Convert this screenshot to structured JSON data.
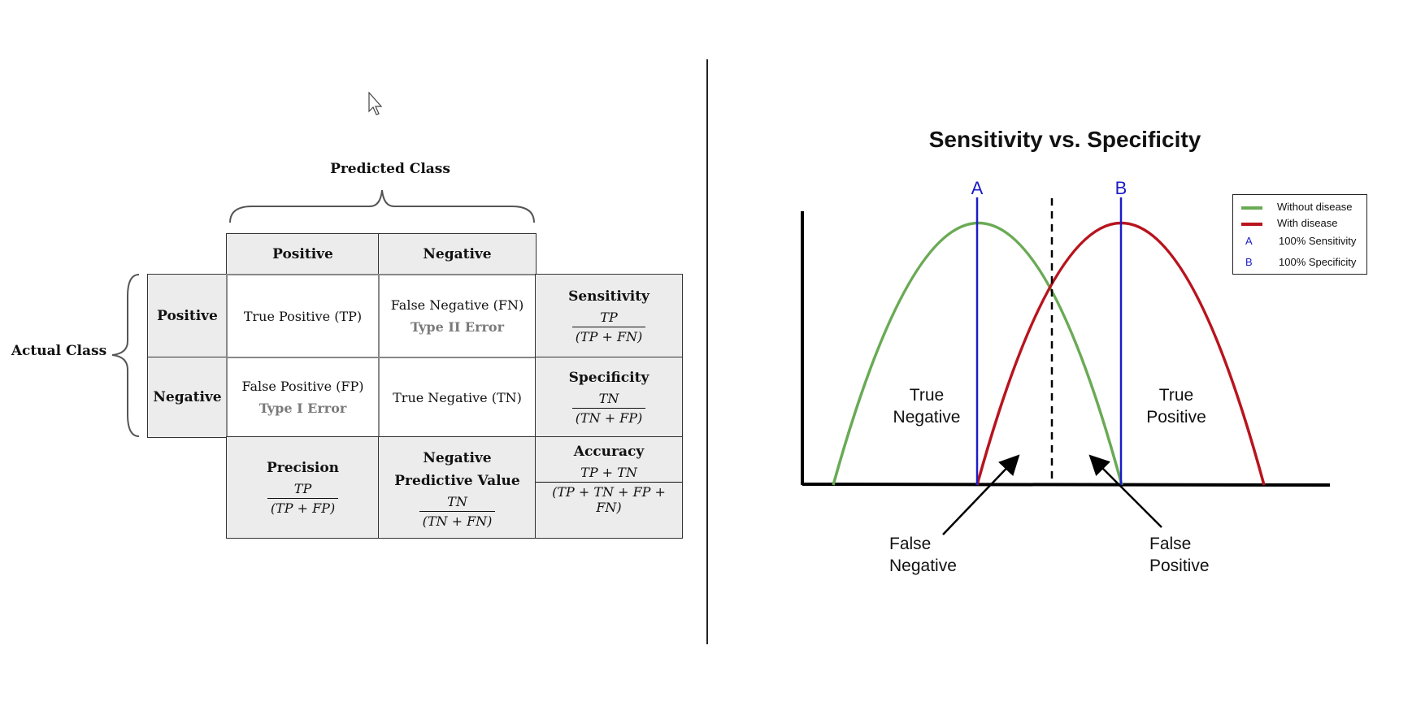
{
  "confusion_matrix": {
    "predicted_class_label": "Predicted Class",
    "actual_class_label": "Actual Class",
    "col_headers": [
      "Positive",
      "Negative"
    ],
    "row_headers": [
      "Positive",
      "Negative"
    ],
    "tp": "True Positive (TP)",
    "fn": "False Negative (FN)",
    "fn_error": "Type II Error",
    "fp": "False Positive (FP)",
    "fp_error": "Type I Error",
    "tn": "True Negative (TN)",
    "sensitivity": {
      "label": "Sensitivity",
      "num": "TP",
      "den": "(TP + FN)"
    },
    "specificity": {
      "label": "Specificity",
      "num": "TN",
      "den": "(TN + FP)"
    },
    "precision": {
      "label": "Precision",
      "num": "TP",
      "den": "(TP + FP)"
    },
    "npv": {
      "label": "Negative Predictive Value",
      "num": "TN",
      "den": "(TN + FN)"
    },
    "accuracy": {
      "label": "Accuracy",
      "num": "TP + TN",
      "den": "(TP + TN + FP + FN)"
    }
  },
  "sens_spec_chart": {
    "title": "Sensitivity vs. Specificity",
    "marker_a": "A",
    "marker_b": "B",
    "region_true_negative": [
      "True",
      "Negative"
    ],
    "region_true_positive": [
      "True",
      "Positive"
    ],
    "arrow_false_negative": [
      "False",
      "Negative"
    ],
    "arrow_false_positive": [
      "False",
      "Positive"
    ],
    "legend": [
      {
        "key": "",
        "label": "Without disease",
        "color": "#6aaa55"
      },
      {
        "key": "",
        "label": "With disease",
        "color": "#b8141e"
      },
      {
        "key": "A",
        "label": "100% Sensitivity",
        "color": "#1c1cc8"
      },
      {
        "key": "B",
        "label": "100% Specificity",
        "color": "#1c1cc8"
      }
    ],
    "colors": {
      "without_disease": "#6aaa55",
      "with_disease": "#b8141e",
      "marker": "#1c1cc8",
      "axis": "#000000"
    }
  }
}
